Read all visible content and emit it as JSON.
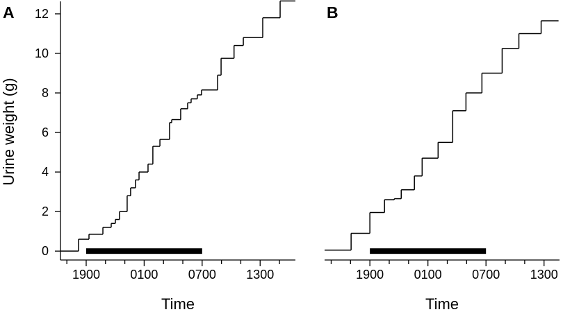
{
  "chart_data": [
    {
      "type": "step",
      "panel_label": "A",
      "y_label": "Urine weight (g)",
      "x_label": "Time",
      "xlim": [
        16.34,
        40.65
      ],
      "ylim": [
        -0.45,
        12.63
      ],
      "xticks": [
        {
          "value": 19,
          "label": "1900"
        },
        {
          "value": 25,
          "label": "0100"
        },
        {
          "value": 31,
          "label": "0700"
        },
        {
          "value": 37,
          "label": "1300"
        }
      ],
      "xminorticks": [
        17,
        21,
        23,
        27,
        29,
        33,
        35,
        39
      ],
      "yticks": [
        0,
        2,
        4,
        6,
        8,
        10,
        12
      ],
      "dark_period": [
        19,
        31
      ],
      "color": "#000000",
      "x": [
        16.34,
        18.21,
        19.29,
        20.73,
        21.59,
        22.02,
        22.45,
        23.24,
        23.6,
        24.1,
        24.47,
        25.4,
        25.9,
        26.63,
        27.63,
        27.85,
        28.78,
        29.5,
        29.86,
        30.5,
        30.94,
        32.6,
        32.96,
        34.3,
        35.26,
        37.27,
        39.07,
        40.65
      ],
      "values": [
        0,
        0.6,
        0.85,
        1.2,
        1.4,
        1.6,
        2.0,
        2.8,
        3.2,
        3.6,
        4.0,
        4.4,
        5.3,
        5.65,
        6.5,
        6.65,
        7.2,
        7.5,
        7.7,
        7.9,
        8.15,
        8.9,
        9.75,
        10.4,
        10.8,
        11.8,
        12.65,
        12.65
      ]
    },
    {
      "type": "step",
      "panel_label": "B",
      "x_label": "Time",
      "xlim": [
        14.32,
        38.6
      ],
      "ylim": [
        -0.45,
        12.63
      ],
      "xticks": [
        {
          "value": 19,
          "label": "1900"
        },
        {
          "value": 25,
          "label": "0100"
        },
        {
          "value": 31,
          "label": "0700"
        },
        {
          "value": 37,
          "label": "1300"
        }
      ],
      "xminorticks": [
        15,
        17,
        21,
        23,
        27,
        29,
        33,
        35
      ],
      "dark_period": [
        19,
        31
      ],
      "color": "#000000",
      "x": [
        14.32,
        17.06,
        19.0,
        20.51,
        21.52,
        22.24,
        23.6,
        24.4,
        26.05,
        27.56,
        28.93,
        30.58,
        32.67,
        34.4,
        36.7,
        38.5
      ],
      "values": [
        0.05,
        0.9,
        1.95,
        2.6,
        2.65,
        3.1,
        3.8,
        4.7,
        5.5,
        7.1,
        8.0,
        9.0,
        10.25,
        11.0,
        11.65,
        11.65
      ]
    }
  ]
}
